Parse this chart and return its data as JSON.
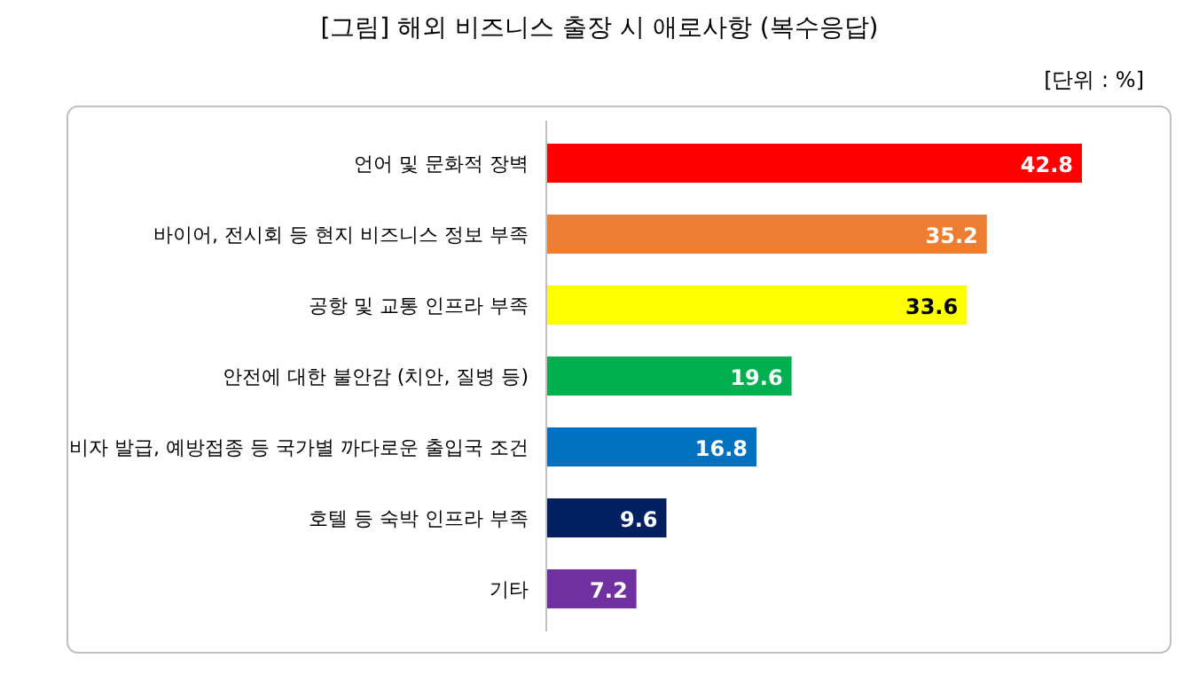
{
  "chart_data": {
    "type": "bar",
    "orientation": "horizontal",
    "title": "[그림] 해외 비즈니스 출장 시 애로사항 (복수응답)",
    "annotations": [
      "[단위 : %]"
    ],
    "categories": [
      "언어 및 문화적 장벽",
      "바이어, 전시회 등 현지 비즈니스 정보 부족",
      "공항 및 교통 인프라 부족",
      "안전에 대한 불안감 (치안, 질병 등)",
      "비자 발급, 예방접종 등 국가별 까다로운 출입국 조건",
      "호텔 등 숙박 인프라 부족",
      "기타"
    ],
    "values": [
      42.8,
      35.2,
      33.6,
      19.6,
      16.8,
      9.6,
      7.2
    ],
    "colors": [
      "#ff0000",
      "#ed7d31",
      "#ffff00",
      "#00b050",
      "#0070c0",
      "#002060",
      "#7030a0"
    ],
    "data_labels": true
  }
}
